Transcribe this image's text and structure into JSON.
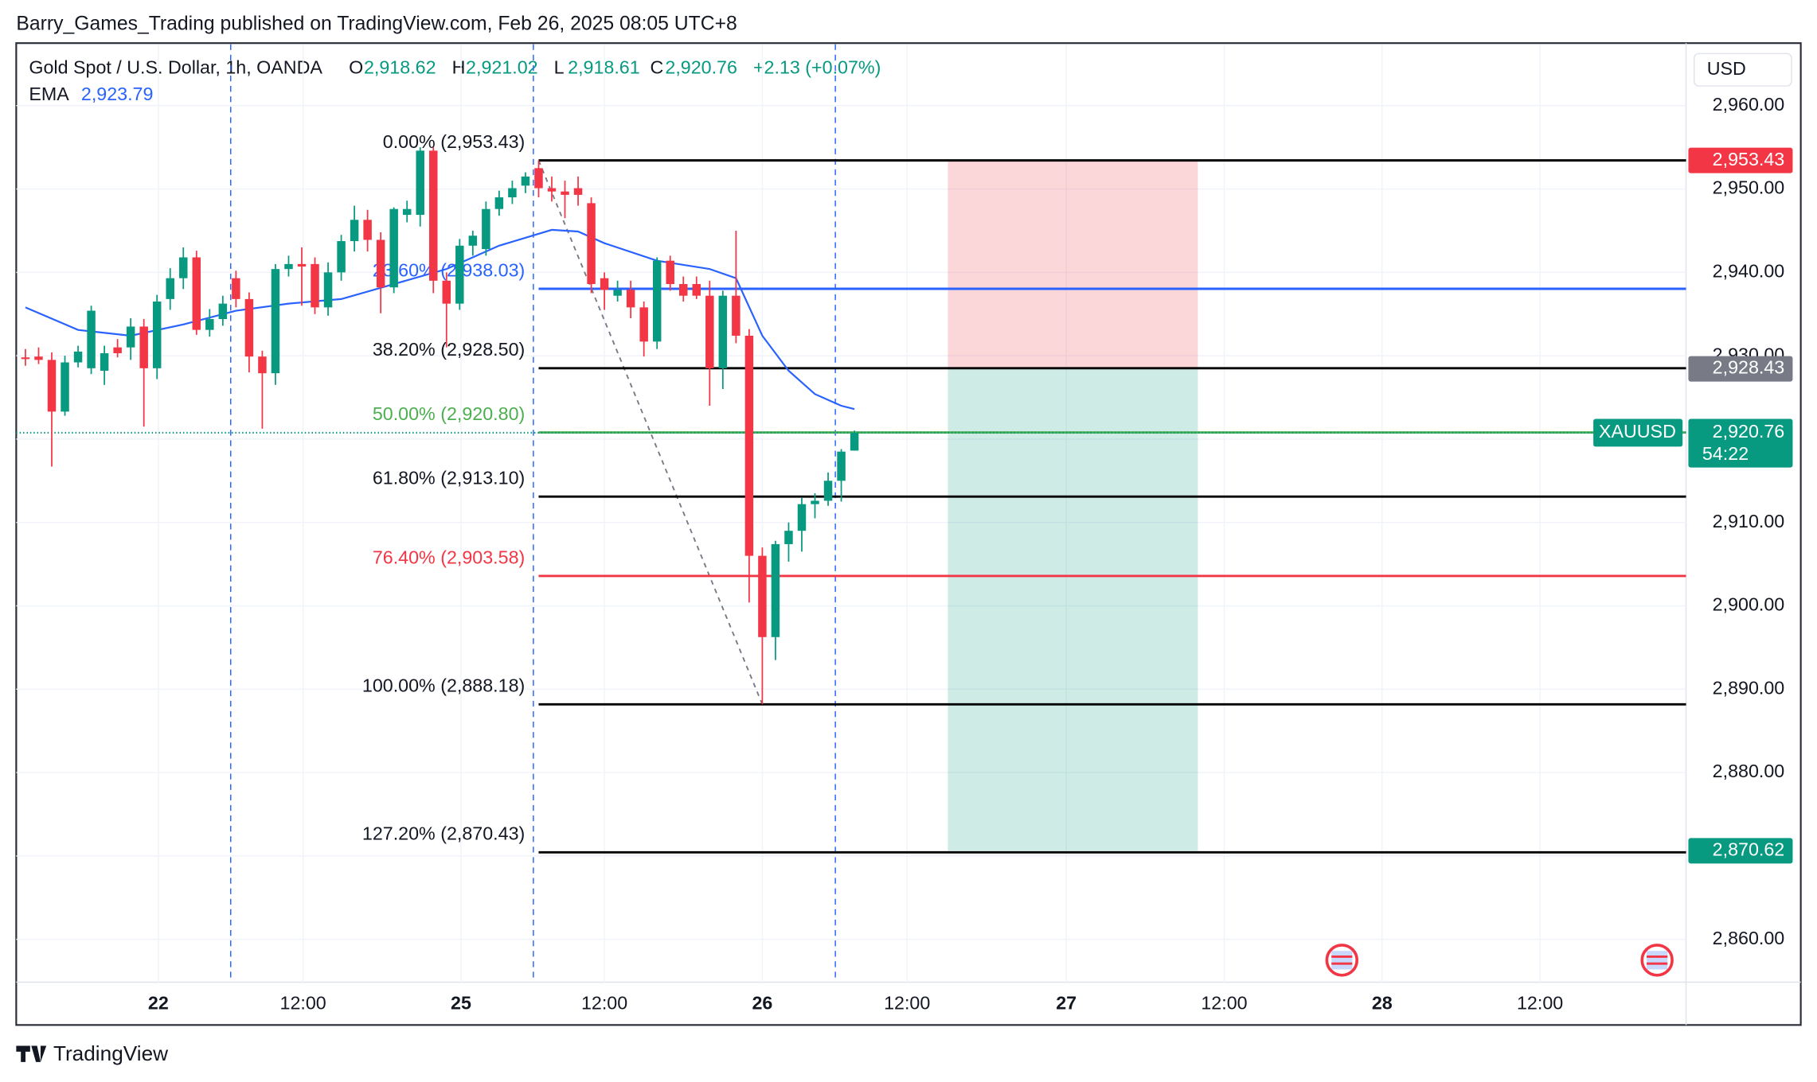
{
  "header": {
    "text": "Barry_Games_Trading published on TradingView.com, Feb 26, 2025 08:05 UTC+8"
  },
  "chart_data": {
    "type": "candlestick",
    "title": "Gold Spot / U.S. Dollar, 1h, OANDA",
    "ohlc": [
      {
        "key": "O",
        "value": 2918.62,
        "label": "2,918.62"
      },
      {
        "key": "H",
        "value": 2921.02,
        "label": "2,921.02"
      },
      {
        "key": "L",
        "value": 2918.61,
        "label": "2,918.61"
      },
      {
        "key": "C",
        "value": 2920.76,
        "label": "2,920.76"
      }
    ],
    "change": {
      "value": 2.13,
      "label": "+2.13 (+0.07%)"
    },
    "currency": "USD",
    "up_color": "#089981",
    "down_color": "#f23645",
    "x": [
      -56,
      -55,
      -54,
      -53,
      -52,
      -51,
      -50,
      -49,
      -48,
      -47,
      -46,
      -45,
      -44,
      -43,
      -42,
      -41,
      -40,
      -39,
      -38,
      -37,
      -36,
      -35,
      -34,
      -33,
      -32,
      -31,
      -30,
      -29,
      -28,
      -27,
      -26,
      -25,
      -24,
      -23,
      -22,
      -21,
      -20,
      -19,
      -18,
      -17,
      -16,
      -15,
      -14,
      -13,
      -12,
      -11,
      -10,
      -9,
      -8,
      -7,
      -6,
      -5,
      -4,
      -3,
      -2,
      -1,
      0,
      1,
      2,
      3,
      4,
      5,
      6,
      7
    ],
    "open": [
      2929.8,
      2929.9,
      2929.5,
      2923.3,
      2929.2,
      2928.5,
      2928.2,
      2931.0,
      2931.0,
      2933.5,
      2928.5,
      2936.8,
      2939.3,
      2941.8,
      2933.1,
      2934.4,
      2939.3,
      2936.8,
      2929.9,
      2927.9,
      2940.4,
      2941.0,
      2941.0,
      2935.8,
      2940.0,
      2943.75,
      2946.3,
      2943.9,
      2938.2,
      2946.9,
      2946.9,
      2954.6,
      2939.0,
      2936.25,
      2943.2,
      2942.8,
      2947.6,
      2949.0,
      2950.4,
      2952.5,
      2950.1,
      2949.7,
      2950.1,
      2948.3,
      2939.3,
      2937.2,
      2937.9,
      2935.8,
      2931.7,
      2941.4,
      2938.6,
      2938.6,
      2937.2,
      2928.5,
      2937.2,
      2932.4,
      2906.0,
      2896.25,
      2907.4,
      2909.0,
      2912.2,
      2912.6,
      2915.0,
      2918.62
    ],
    "high": [
      2930.8,
      2931.0,
      2930.4,
      2930.0,
      2931.2,
      2936.0,
      2931.2,
      2932.0,
      2934.5,
      2934.4,
      2937.3,
      2940.5,
      2943.0,
      2942.6,
      2935.6,
      2937.2,
      2940.2,
      2937.6,
      2930.6,
      2941.0,
      2942.0,
      2943.0,
      2941.8,
      2941.2,
      2944.5,
      2948.0,
      2947.5,
      2944.8,
      2947.8,
      2948.6,
      2955.0,
      2955.0,
      2940.0,
      2944.0,
      2945.0,
      2948.5,
      2949.8,
      2951.0,
      2952.0,
      2953.43,
      2951.5,
      2951.0,
      2951.5,
      2949.0,
      2940.0,
      2939.0,
      2939.0,
      2936.5,
      2941.8,
      2942.0,
      2939.5,
      2939.5,
      2939.0,
      2937.8,
      2945.0,
      2933.2,
      2907.0,
      2907.8,
      2910.0,
      2913.0,
      2913.5,
      2916.0,
      2918.8,
      2921.02
    ],
    "low": [
      2928.8,
      2929.0,
      2916.7,
      2922.8,
      2928.6,
      2927.8,
      2926.5,
      2929.8,
      2929.5,
      2921.5,
      2927.2,
      2935.5,
      2938.0,
      2932.5,
      2932.3,
      2933.6,
      2935.8,
      2928.0,
      2921.25,
      2926.5,
      2939.5,
      2936.0,
      2935.0,
      2934.8,
      2939.0,
      2942.5,
      2942.5,
      2935.1,
      2937.5,
      2946.0,
      2945.5,
      2937.5,
      2931.0,
      2935.5,
      2942.0,
      2942.0,
      2946.8,
      2948.2,
      2949.5,
      2949.0,
      2948.5,
      2946.5,
      2948.0,
      2937.5,
      2935.5,
      2936.5,
      2934.5,
      2929.9,
      2930.8,
      2937.8,
      2936.5,
      2936.8,
      2924.0,
      2926.0,
      2931.5,
      2900.4,
      2888.2,
      2893.5,
      2905.3,
      2906.5,
      2910.5,
      2912.0,
      2912.5,
      2918.61
    ],
    "close": [
      2929.6,
      2929.5,
      2923.3,
      2929.2,
      2930.5,
      2935.4,
      2930.3,
      2930.3,
      2933.5,
      2928.5,
      2936.5,
      2939.3,
      2941.8,
      2933.1,
      2934.4,
      2936.25,
      2936.8,
      2929.9,
      2927.9,
      2940.4,
      2941.0,
      2940.7,
      2935.8,
      2940.0,
      2943.75,
      2946.3,
      2943.9,
      2938.2,
      2947.6,
      2947.6,
      2954.6,
      2939.0,
      2936.25,
      2943.2,
      2944.4,
      2947.6,
      2949.0,
      2950.1,
      2951.5,
      2950.1,
      2949.7,
      2949.3,
      2949.3,
      2938.6,
      2937.9,
      2937.9,
      2935.8,
      2931.7,
      2941.4,
      2938.6,
      2937.2,
      2937.2,
      2928.5,
      2937.2,
      2932.4,
      2906.0,
      2896.25,
      2907.4,
      2909.0,
      2912.2,
      2912.6,
      2915.0,
      2918.5,
      2920.76
    ],
    "ema": {
      "name": "EMA",
      "current": {
        "value": 2923.79,
        "label": "2,923.79"
      },
      "color": "#2962ff",
      "x": [
        -56,
        -52,
        -48,
        -44,
        -40,
        -36,
        -32,
        -28,
        -24,
        -20,
        -16,
        -14,
        -12,
        -8,
        -4,
        -2,
        0,
        2,
        4,
        6,
        7
      ],
      "values": [
        2935.8,
        2933.1,
        2932.4,
        2933.75,
        2935.4,
        2936.25,
        2936.8,
        2938.6,
        2940.4,
        2943.2,
        2945.1,
        2944.9,
        2943.5,
        2941.4,
        2940.4,
        2939.3,
        2932.4,
        2928.2,
        2925.4,
        2924.0,
        2923.6
      ]
    },
    "xlim": [
      -56.7,
      70.2
    ],
    "xticks": [
      {
        "value": -45.9,
        "label": "22"
      },
      {
        "value": -34.9,
        "label": "12:00"
      },
      {
        "value": -22.9,
        "label": "25"
      },
      {
        "value": -12.0,
        "label": "12:00"
      },
      {
        "value": 0,
        "label": "26"
      },
      {
        "value": 11.0,
        "label": "12:00"
      },
      {
        "value": 23.1,
        "label": "27"
      },
      {
        "value": 35.1,
        "label": "12:00"
      },
      {
        "value": 47.1,
        "label": "28"
      },
      {
        "value": 59.1,
        "label": "12:00"
      }
    ],
    "ylim": [
      2854.86,
      2967.36
    ],
    "yticks": [
      {
        "value": 2860,
        "label": "2,860.00"
      },
      {
        "value": 2870,
        "label": "2,870.00"
      },
      {
        "value": 2880,
        "label": "2,880.00"
      },
      {
        "value": 2890,
        "label": "2,890.00"
      },
      {
        "value": 2900,
        "label": "2,900.00"
      },
      {
        "value": 2910,
        "label": "2,910.00"
      },
      {
        "value": 2920,
        "label": "2,920.00"
      },
      {
        "value": 2930,
        "label": "2,930.00"
      },
      {
        "value": 2940,
        "label": "2,940.00"
      },
      {
        "value": 2950,
        "label": "2,950.00"
      },
      {
        "value": 2960,
        "label": "2,960.00"
      }
    ],
    "grid": true,
    "session_breaks": [
      -40.4,
      -17.4,
      5.55
    ],
    "fibonacci": {
      "x_start": -17,
      "trend": {
        "x": [
          -17,
          0
        ],
        "y": [
          2953.43,
          2888.18
        ]
      },
      "levels": [
        {
          "value": 2953.43,
          "label": "0.00% (2,953.43)",
          "color": "#000000"
        },
        {
          "value": 2938.03,
          "label": "23.60% (2,938.03)",
          "color": "#2962ff"
        },
        {
          "value": 2928.5,
          "label": "38.20% (2,928.50)",
          "color": "#000000"
        },
        {
          "value": 2920.8,
          "label": "50.00% (2,920.80)",
          "color": "#4caf50"
        },
        {
          "value": 2913.1,
          "label": "61.80% (2,913.10)",
          "color": "#000000"
        },
        {
          "value": 2903.58,
          "label": "76.40% (2,903.58)",
          "color": "#f23645"
        },
        {
          "value": 2888.18,
          "label": "100.00% (2,888.18)",
          "color": "#000000"
        },
        {
          "value": 2870.43,
          "label": "127.20% (2,870.43)",
          "color": "#000000"
        }
      ]
    },
    "position": {
      "x": [
        14.1,
        33.1
      ],
      "stop": {
        "value": 2953.43,
        "label": "2,953.43",
        "color": "#f23645"
      },
      "entry": {
        "value": 2928.43,
        "label": "2,928.43",
        "color": "#787b86"
      },
      "target": {
        "value": 2870.62,
        "label": "2,870.62",
        "color": "#089981"
      }
    },
    "last_price": {
      "symbol": "XAUUSD",
      "value": 2920.76,
      "label": "2,920.76",
      "countdown": "54:22",
      "color": "#089981"
    }
  },
  "footer": {
    "brand": "TradingView"
  }
}
